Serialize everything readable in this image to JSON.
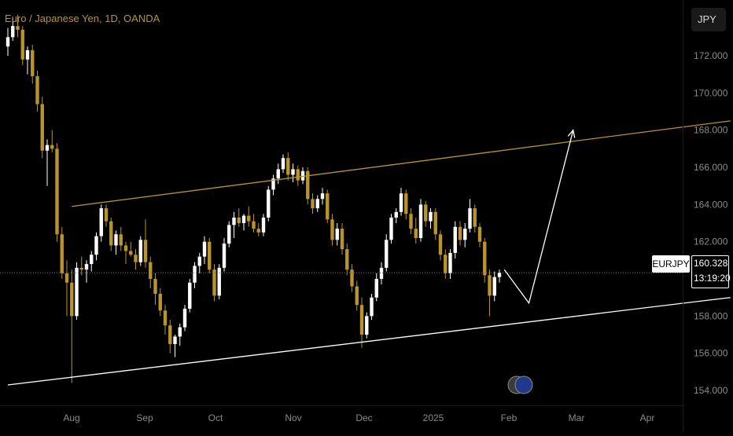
{
  "title": "Euro / Japanese Yen, 1D, OANDA",
  "currency": "JPY",
  "symbol": "EURJPY",
  "last_price": "160.328",
  "countdown": "13:19:20",
  "colors": {
    "background": "#000000",
    "candle_up": "#ffffff",
    "candle_down": "#b8942a",
    "upper_line": "#b8942a",
    "lower_line": "#ffffff",
    "projection": "#ffffff",
    "axis_text": "#8a8a8a",
    "grid": "#1f1f1f"
  },
  "chart_data": {
    "type": "candlestick",
    "ylim": [
      153.2,
      175.0
    ],
    "y_ticks": [
      "172.000",
      "170.000",
      "168.000",
      "166.000",
      "164.000",
      "162.000",
      "160.000",
      "158.000",
      "156.000",
      "154.000"
    ],
    "x_ticks": [
      "Aug",
      "Sep",
      "Oct",
      "Nov",
      "Dec",
      "2025",
      "Feb",
      "Mar",
      "Apr"
    ],
    "ohlc": [
      [
        172.5,
        173.5,
        172.0,
        173.0
      ],
      [
        173.0,
        174.0,
        172.8,
        173.6
      ],
      [
        173.6,
        174.2,
        173.0,
        173.4
      ],
      [
        173.4,
        173.6,
        171.5,
        171.8
      ],
      [
        171.8,
        172.5,
        171.0,
        172.3
      ],
      [
        172.3,
        172.6,
        170.5,
        170.9
      ],
      [
        170.9,
        171.2,
        169.0,
        169.4
      ],
      [
        169.4,
        169.8,
        166.5,
        166.9
      ],
      [
        166.9,
        167.5,
        165.0,
        167.2
      ],
      [
        167.2,
        168.0,
        166.8,
        167.0
      ],
      [
        167.0,
        167.3,
        162.0,
        162.4
      ],
      [
        162.4,
        162.8,
        160.0,
        160.3
      ],
      [
        160.3,
        161.0,
        158.0,
        159.8
      ],
      [
        159.8,
        160.5,
        154.4,
        158.0
      ],
      [
        158.0,
        160.9,
        157.8,
        160.6
      ],
      [
        160.6,
        161.2,
        160.2,
        160.5
      ],
      [
        160.5,
        161.0,
        159.8,
        160.8
      ],
      [
        160.8,
        161.5,
        160.4,
        161.3
      ],
      [
        161.3,
        162.5,
        161.0,
        162.3
      ],
      [
        162.3,
        164.0,
        162.0,
        163.8
      ],
      [
        163.8,
        164.0,
        162.8,
        163.1
      ],
      [
        163.1,
        163.3,
        161.5,
        161.8
      ],
      [
        161.8,
        162.6,
        161.3,
        162.4
      ],
      [
        162.4,
        162.8,
        161.5,
        161.8
      ],
      [
        161.8,
        162.0,
        160.8,
        161.5
      ],
      [
        161.5,
        162.0,
        161.2,
        161.3
      ],
      [
        161.3,
        161.6,
        160.5,
        160.9
      ],
      [
        160.9,
        162.3,
        160.7,
        162.1
      ],
      [
        162.1,
        163.2,
        160.6,
        160.9
      ],
      [
        160.9,
        161.2,
        159.5,
        160.0
      ],
      [
        160.0,
        160.3,
        158.6,
        159.2
      ],
      [
        159.2,
        159.5,
        158.0,
        158.3
      ],
      [
        158.3,
        158.6,
        157.0,
        157.5
      ],
      [
        157.5,
        157.8,
        156.0,
        156.5
      ],
      [
        156.5,
        157.0,
        155.8,
        156.9
      ],
      [
        156.9,
        157.6,
        156.4,
        157.4
      ],
      [
        157.4,
        158.6,
        157.2,
        158.4
      ],
      [
        158.4,
        160.0,
        158.2,
        159.8
      ],
      [
        159.8,
        160.9,
        159.5,
        160.7
      ],
      [
        160.7,
        161.4,
        160.3,
        161.2
      ],
      [
        161.2,
        162.3,
        160.8,
        162.0
      ],
      [
        162.0,
        162.2,
        160.3,
        160.5
      ],
      [
        160.5,
        160.8,
        158.8,
        159.1
      ],
      [
        159.1,
        160.8,
        158.9,
        160.6
      ],
      [
        160.6,
        162.2,
        160.4,
        161.9
      ],
      [
        161.9,
        163.1,
        161.7,
        162.9
      ],
      [
        162.9,
        163.6,
        162.2,
        163.3
      ],
      [
        163.3,
        163.8,
        162.8,
        163.0
      ],
      [
        163.0,
        163.5,
        162.6,
        163.4
      ],
      [
        163.4,
        163.9,
        162.8,
        163.1
      ],
      [
        163.1,
        163.5,
        162.5,
        162.7
      ],
      [
        162.7,
        163.0,
        162.3,
        162.5
      ],
      [
        162.5,
        163.5,
        162.3,
        163.3
      ],
      [
        163.3,
        165.0,
        163.1,
        164.8
      ],
      [
        164.8,
        165.6,
        164.5,
        165.4
      ],
      [
        165.4,
        166.2,
        165.1,
        165.9
      ],
      [
        165.9,
        166.7,
        165.7,
        166.5
      ],
      [
        166.5,
        166.8,
        165.3,
        165.6
      ],
      [
        165.6,
        166.2,
        165.2,
        165.9
      ],
      [
        165.9,
        166.1,
        165.0,
        165.3
      ],
      [
        165.3,
        166.0,
        165.1,
        165.8
      ],
      [
        165.8,
        166.0,
        164.0,
        164.3
      ],
      [
        164.3,
        164.6,
        163.5,
        163.8
      ],
      [
        163.8,
        164.5,
        163.6,
        164.3
      ],
      [
        164.3,
        164.9,
        164.0,
        164.6
      ],
      [
        164.6,
        164.8,
        163.0,
        163.2
      ],
      [
        163.2,
        163.5,
        161.8,
        162.1
      ],
      [
        162.1,
        163.0,
        161.8,
        162.7
      ],
      [
        162.7,
        163.0,
        161.3,
        161.6
      ],
      [
        161.6,
        161.9,
        160.2,
        160.5
      ],
      [
        160.5,
        160.8,
        159.3,
        159.6
      ],
      [
        159.6,
        159.9,
        158.3,
        158.6
      ],
      [
        158.6,
        159.0,
        156.3,
        157.0
      ],
      [
        157.0,
        158.2,
        156.8,
        158.0
      ],
      [
        158.0,
        159.2,
        157.8,
        159.0
      ],
      [
        159.0,
        160.3,
        158.8,
        160.0
      ],
      [
        160.0,
        160.9,
        159.7,
        160.6
      ],
      [
        160.6,
        162.4,
        160.4,
        162.1
      ],
      [
        162.1,
        163.5,
        161.9,
        163.3
      ],
      [
        163.3,
        163.8,
        163.0,
        163.6
      ],
      [
        163.6,
        164.9,
        163.4,
        164.6
      ],
      [
        164.6,
        164.8,
        163.2,
        163.5
      ],
      [
        163.5,
        163.8,
        162.4,
        162.7
      ],
      [
        162.7,
        163.3,
        161.9,
        162.2
      ],
      [
        162.2,
        164.3,
        162.0,
        164.0
      ],
      [
        164.0,
        164.2,
        162.8,
        163.1
      ],
      [
        163.1,
        163.8,
        162.7,
        163.6
      ],
      [
        163.6,
        163.8,
        162.1,
        162.4
      ],
      [
        162.4,
        162.6,
        161.0,
        161.3
      ],
      [
        161.3,
        161.6,
        160.0,
        160.3
      ],
      [
        160.3,
        161.6,
        160.0,
        161.4
      ],
      [
        161.4,
        163.1,
        161.1,
        162.8
      ],
      [
        162.8,
        163.1,
        161.8,
        162.1
      ],
      [
        162.1,
        163.0,
        161.7,
        162.7
      ],
      [
        162.7,
        164.3,
        162.5,
        163.8
      ],
      [
        163.8,
        164.0,
        162.5,
        162.8
      ],
      [
        162.8,
        163.0,
        161.7,
        162.0
      ],
      [
        162.0,
        162.2,
        159.8,
        160.2
      ],
      [
        160.2,
        160.5,
        158.0,
        159.1
      ],
      [
        159.1,
        160.4,
        158.8,
        160.1
      ],
      [
        160.1,
        160.5,
        159.8,
        160.328
      ]
    ],
    "upper_trendline": {
      "from": {
        "bar": 13,
        "y": 163.9
      },
      "to": {
        "bar": 147,
        "y": 168.5
      }
    },
    "lower_trendline": {
      "from": {
        "bar": 0,
        "y": 154.3
      },
      "to": {
        "bar": 147,
        "y": 159.0
      }
    },
    "projection_path": [
      {
        "bar": 101,
        "y": 160.5
      },
      {
        "bar": 106,
        "y": 158.7
      },
      {
        "bar": 115,
        "y": 168.0
      }
    ]
  }
}
